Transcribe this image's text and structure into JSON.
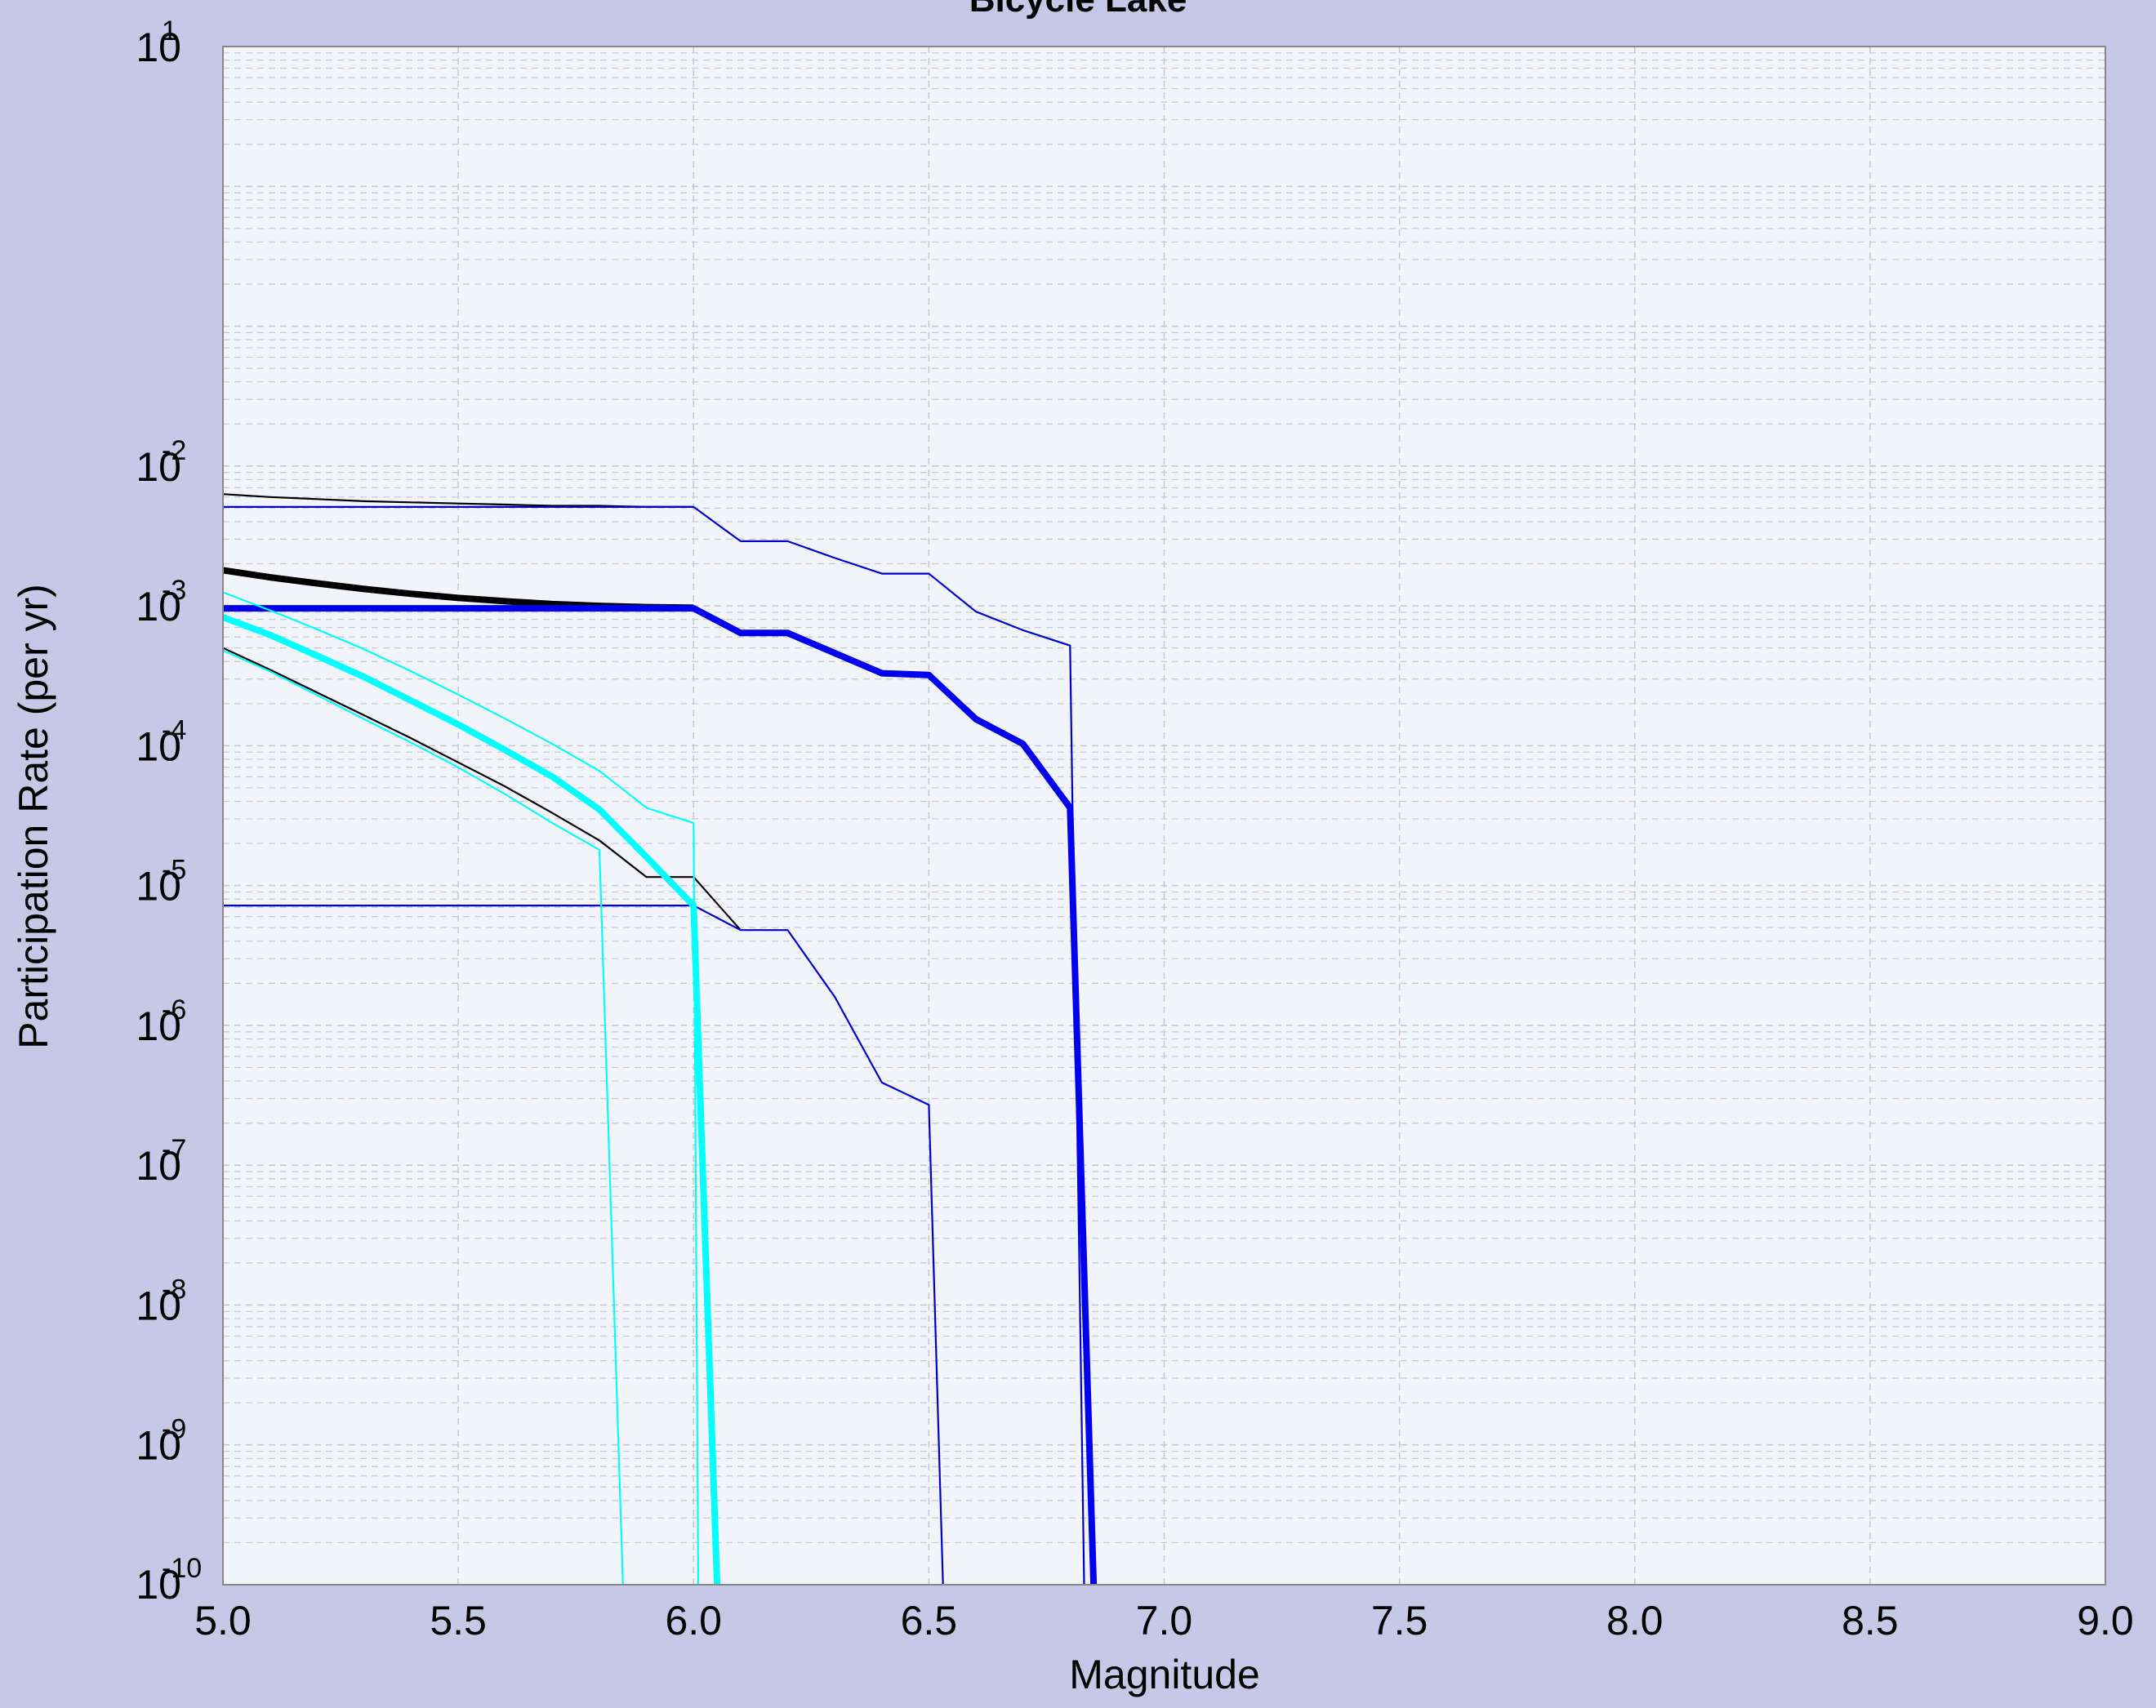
{
  "chart_data": {
    "type": "line",
    "title": "Bicycle Lake",
    "xlabel": "Magnitude",
    "ylabel": "Participation Rate (per yr)",
    "xlim": [
      5.0,
      9.0
    ],
    "ylim": [
      1e-10,
      10
    ],
    "yscale": "log",
    "grid": true,
    "x_ticks": [
      "5.0",
      "5.5",
      "6.0",
      "6.5",
      "7.0",
      "7.5",
      "8.0",
      "8.5",
      "9.0"
    ],
    "y_ticks": [
      {
        "base": "10",
        "exp": "-10"
      },
      {
        "base": "10",
        "exp": "-9"
      },
      {
        "base": "10",
        "exp": "-8"
      },
      {
        "base": "10",
        "exp": "-7"
      },
      {
        "base": "10",
        "exp": "-6"
      },
      {
        "base": "10",
        "exp": "-5"
      },
      {
        "base": "10",
        "exp": "-4"
      },
      {
        "base": "10",
        "exp": "-3"
      },
      {
        "base": "10",
        "exp": "-2"
      },
      {
        "base": "10",
        "exp": "1"
      }
    ],
    "colors": {
      "figure_bg": "#c7c7e6",
      "plot_bg": "#f3f3fa",
      "grid": "#c8c8d0",
      "black": "#000000",
      "blue": "#0000ee",
      "navy": "#0000cc",
      "cyan": "#00ffff"
    },
    "series": [
      {
        "color": "#000000",
        "width": 2.2,
        "x": [
          5.0,
          5.1,
          5.2,
          5.3,
          5.4,
          5.5,
          5.6,
          5.7,
          5.8,
          5.9,
          6.0
        ],
        "y": [
          0.0063,
          0.006,
          0.0058,
          0.0056,
          0.0055,
          0.0054,
          0.0053,
          0.0052,
          0.0052,
          0.0051,
          0.0051
        ]
      },
      {
        "color": "#000000",
        "width": 8,
        "x": [
          5.0,
          5.1,
          5.2,
          5.3,
          5.4,
          5.5,
          5.6,
          5.7,
          5.8,
          5.9,
          6.0
        ],
        "y": [
          0.0018,
          0.0016,
          0.00145,
          0.00132,
          0.00122,
          0.00114,
          0.00108,
          0.00103,
          0.001,
          0.00098,
          0.00097
        ]
      },
      {
        "color": "#000000",
        "width": 2.2,
        "x": [
          5.0,
          5.1,
          5.2,
          5.3,
          5.4,
          5.5,
          5.6,
          5.7,
          5.8,
          5.9,
          6.0,
          6.1
        ],
        "y": [
          0.0005,
          0.00035,
          0.00024,
          0.000165,
          0.000113,
          7.6e-05,
          5.1e-05,
          3.3e-05,
          2.1e-05,
          1.15e-05,
          1.15e-05,
          4.8e-06
        ]
      },
      {
        "color": "#0000cc",
        "width": 2.2,
        "x": [
          5.0,
          6.0,
          6.1,
          6.2,
          6.3,
          6.4,
          6.5,
          6.6,
          6.7,
          6.8,
          6.83
        ],
        "y": [
          0.0051,
          0.0051,
          0.0029,
          0.0029,
          0.0022,
          0.0017,
          0.0017,
          0.00091,
          0.00067,
          0.00052,
          1e-10
        ]
      },
      {
        "color": "#0000ee",
        "width": 8,
        "x": [
          5.0,
          6.0,
          6.1,
          6.2,
          6.3,
          6.4,
          6.5,
          6.6,
          6.7,
          6.8,
          6.85
        ],
        "y": [
          0.00096,
          0.00096,
          0.00064,
          0.00064,
          0.00046,
          0.00033,
          0.00032,
          0.000155,
          0.000103,
          3.6e-05,
          1e-10
        ]
      },
      {
        "color": "#0000cc",
        "width": 2.2,
        "x": [
          5.0,
          6.0,
          6.1,
          6.2,
          6.3,
          6.4,
          6.5,
          6.53
        ],
        "y": [
          7.2e-06,
          7.2e-06,
          4.8e-06,
          4.8e-06,
          1.6e-06,
          3.9e-07,
          2.7e-07,
          1e-10
        ]
      },
      {
        "color": "#00ffff",
        "width": 2.2,
        "x": [
          5.0,
          5.1,
          5.2,
          5.3,
          5.4,
          5.5,
          5.6,
          5.7,
          5.8,
          5.9,
          6.0,
          6.01
        ],
        "y": [
          0.00125,
          0.00093,
          0.00068,
          0.00049,
          0.00034,
          0.000232,
          0.000156,
          0.000103,
          6.6e-05,
          3.6e-05,
          2.8e-05,
          1e-10
        ]
      },
      {
        "color": "#00ffff",
        "width": 8,
        "x": [
          5.0,
          5.1,
          5.2,
          5.3,
          5.4,
          5.5,
          5.6,
          5.7,
          5.8,
          5.9,
          6.0,
          6.05
        ],
        "y": [
          0.00083,
          0.00062,
          0.00044,
          0.00031,
          0.00021,
          0.000142,
          9.3e-05,
          6e-05,
          3.5e-05,
          1.6e-05,
          7.2e-06,
          1e-10
        ]
      },
      {
        "color": "#00ffff",
        "width": 2.2,
        "x": [
          5.0,
          5.1,
          5.2,
          5.3,
          5.4,
          5.5,
          5.6,
          5.7,
          5.8,
          5.85
        ],
        "y": [
          0.00048,
          0.00034,
          0.00023,
          0.000155,
          0.000105,
          7e-05,
          4.5e-05,
          2.8e-05,
          1.8e-05,
          1e-10
        ]
      }
    ]
  }
}
